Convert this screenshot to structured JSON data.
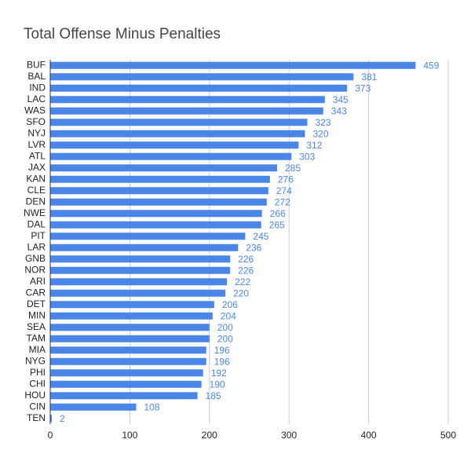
{
  "chart_data": {
    "type": "bar",
    "orientation": "horizontal",
    "title": "Total Offense Minus Penalties",
    "categories": [
      "BUF",
      "BAL",
      "IND",
      "LAC",
      "WAS",
      "SFO",
      "NYJ",
      "LVR",
      "ATL",
      "JAX",
      "KAN",
      "CLE",
      "DEN",
      "NWE",
      "DAL",
      "PIT",
      "LAR",
      "GNB",
      "NOR",
      "ARI",
      "CAR",
      "DET",
      "MIN",
      "SEA",
      "TAM",
      "MIA",
      "NYG",
      "PHI",
      "CHI",
      "HOU",
      "CIN",
      "TEN"
    ],
    "values": [
      459,
      381,
      373,
      345,
      343,
      323,
      320,
      312,
      303,
      285,
      276,
      274,
      272,
      266,
      265,
      245,
      236,
      226,
      226,
      222,
      220,
      206,
      204,
      200,
      200,
      196,
      196,
      192,
      190,
      185,
      108,
      2
    ],
    "color": "#4a86e8",
    "xlim": [
      0,
      500
    ],
    "xticks": [
      0,
      100,
      200,
      300,
      400,
      500
    ],
    "grid": true
  }
}
